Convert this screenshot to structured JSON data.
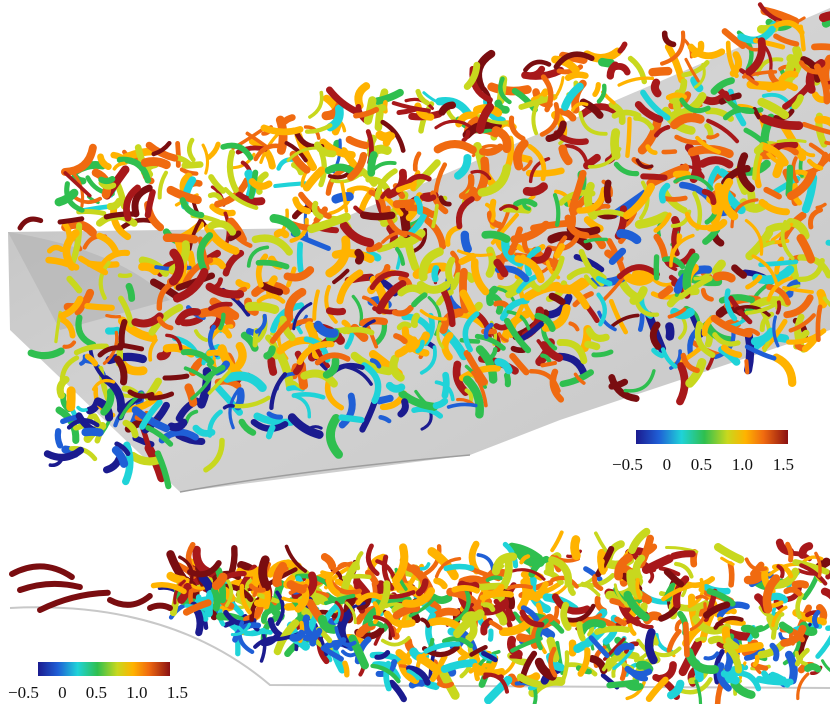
{
  "colors": {
    "surface": "#c9c9c9",
    "surface_dark": "#a9a9a9",
    "background": "#ffffff",
    "colormap": [
      "#1b1b8f",
      "#1f5fd6",
      "#1fd3d8",
      "#2fbf4f",
      "#c8d81e",
      "#ffb300",
      "#f06a10",
      "#a8181a",
      "#7a0d10"
    ]
  },
  "top_view": {
    "colorbar": {
      "labels": [
        "−0.5",
        "0",
        "0.5",
        "1.0",
        "1.5"
      ]
    }
  },
  "side_view": {
    "colorbar": {
      "labels": [
        "−0.5",
        "0",
        "0.5",
        "1.0",
        "1.5"
      ]
    }
  }
}
